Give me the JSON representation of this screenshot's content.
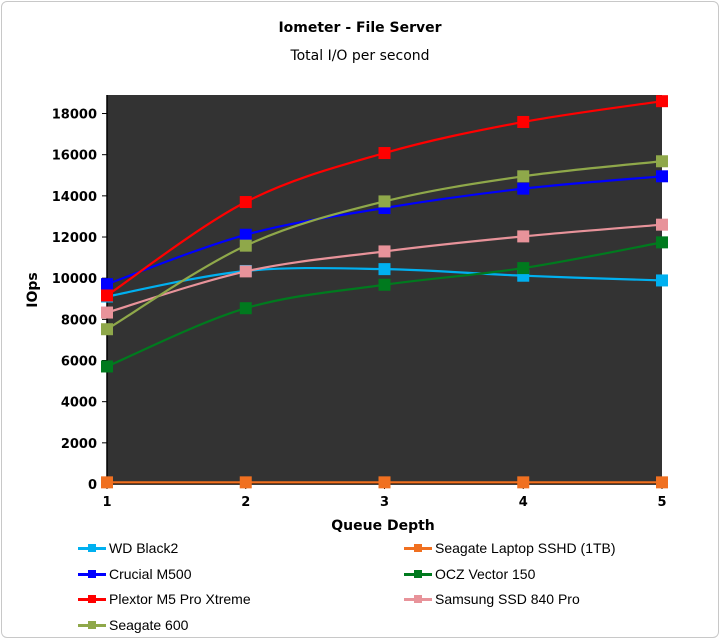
{
  "chart_data": {
    "type": "line",
    "title": "Iometer - File Server",
    "subtitle": "Total I/O per second",
    "xlabel": "Queue Depth",
    "ylabel": "IOps",
    "x": [
      1,
      2,
      3,
      4,
      5
    ],
    "x_ticks": [
      "1",
      "2",
      "3",
      "4",
      "5"
    ],
    "y_ticks": [
      "0",
      "2000",
      "4000",
      "6000",
      "8000",
      "10000",
      "12000",
      "14000",
      "16000",
      "18000"
    ],
    "ylim": [
      0,
      18900
    ],
    "grid": false,
    "plot_background": "#333333",
    "legend_placement": "bottom",
    "series": [
      {
        "name": "WD Black2",
        "color": "#00B0F0",
        "values": [
          9110,
          10350,
          10440,
          10120,
          9890
        ]
      },
      {
        "name": "Seagate Laptop SSHD (1TB)",
        "color": "#F07020",
        "values": [
          80,
          80,
          80,
          80,
          80
        ]
      },
      {
        "name": "Crucial M500",
        "color": "#0000FF",
        "values": [
          9710,
          12110,
          13410,
          14350,
          14950
        ]
      },
      {
        "name": "OCZ Vector 150",
        "color": "#007A1E",
        "values": [
          5710,
          8540,
          9680,
          10490,
          11740
        ]
      },
      {
        "name": "Plextor M5 Pro Xtreme",
        "color": "#FF0000",
        "values": [
          9160,
          13700,
          16080,
          17590,
          18600
        ]
      },
      {
        "name": "Samsung SSD 840 Pro",
        "color": "#E8939A",
        "values": [
          8330,
          10330,
          11300,
          12030,
          12600
        ]
      },
      {
        "name": "Seagate 600",
        "color": "#8FA84A",
        "values": [
          7520,
          11580,
          13730,
          14950,
          15680
        ]
      }
    ]
  }
}
